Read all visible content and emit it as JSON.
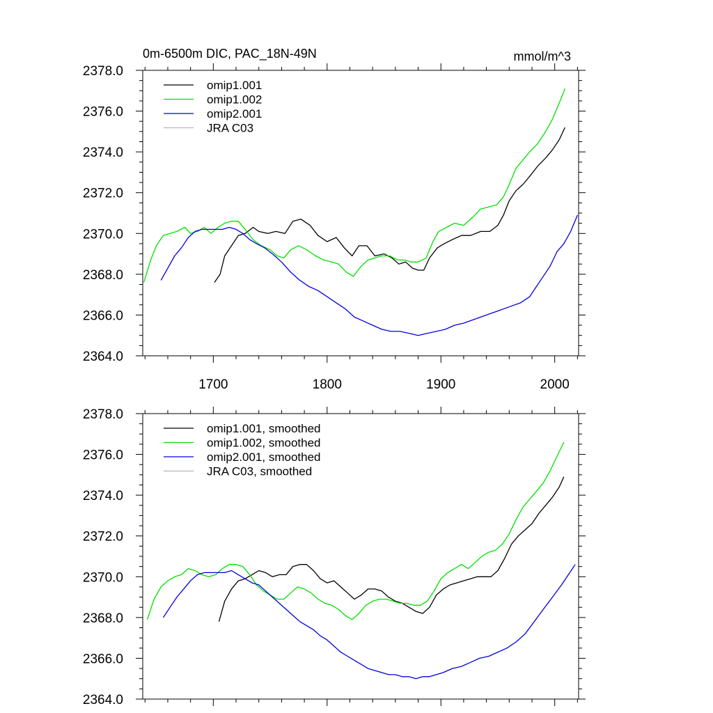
{
  "chart_data": [
    {
      "type": "line",
      "title": "0m-6500m DIC, PAC_18N-49N",
      "units": "mmol/m^3",
      "xlim": [
        1638,
        2021
      ],
      "ylim": [
        2364.0,
        2378.0
      ],
      "xticks": [
        1700,
        1800,
        1900,
        2000
      ],
      "xtick_labels": [
        "1700",
        "1800",
        "1900",
        "2000"
      ],
      "yticks": [
        2364.0,
        2366.0,
        2368.0,
        2370.0,
        2372.0,
        2374.0,
        2376.0,
        2378.0
      ],
      "ytick_labels": [
        "2364.0",
        "2366.0",
        "2368.0",
        "2370.0",
        "2372.0",
        "2374.0",
        "2376.0",
        "2378.0"
      ],
      "legend": {
        "placement": "top-left"
      },
      "series": [
        {
          "name": "omip1.001",
          "color": "#000000",
          "x": [
            1701,
            1706,
            1710,
            1716,
            1722,
            1728,
            1735,
            1740,
            1748,
            1755,
            1763,
            1770,
            1777,
            1785,
            1792,
            1800,
            1808,
            1815,
            1822,
            1828,
            1835,
            1842,
            1850,
            1857,
            1863,
            1869,
            1875,
            1880,
            1885,
            1890,
            1897,
            1903,
            1910,
            1918,
            1926,
            1935,
            1943,
            1950,
            1955,
            1960,
            1966,
            1972,
            1978,
            1985,
            1992,
            1998,
            2004,
            2009
          ],
          "values": [
            2367.6,
            2368.0,
            2368.9,
            2369.4,
            2369.9,
            2370.0,
            2370.3,
            2370.1,
            2370.0,
            2370.1,
            2370.0,
            2370.6,
            2370.7,
            2370.4,
            2369.9,
            2369.6,
            2369.8,
            2369.3,
            2368.9,
            2369.4,
            2369.4,
            2368.9,
            2369.0,
            2368.8,
            2368.5,
            2368.6,
            2368.3,
            2368.2,
            2368.2,
            2368.8,
            2369.3,
            2369.5,
            2369.7,
            2369.9,
            2369.9,
            2370.1,
            2370.1,
            2370.4,
            2370.9,
            2371.6,
            2372.1,
            2372.4,
            2372.8,
            2373.3,
            2373.7,
            2374.1,
            2374.6,
            2375.2
          ]
        },
        {
          "name": "omip1.002",
          "color": "#00e000",
          "x": [
            1639,
            1645,
            1650,
            1656,
            1662,
            1668,
            1675,
            1680,
            1686,
            1692,
            1698,
            1704,
            1710,
            1716,
            1722,
            1728,
            1735,
            1742,
            1750,
            1756,
            1762,
            1768,
            1775,
            1782,
            1790,
            1797,
            1804,
            1810,
            1817,
            1823,
            1830,
            1836,
            1842,
            1848,
            1855,
            1862,
            1868,
            1874,
            1880,
            1887,
            1893,
            1898,
            1905,
            1912,
            1920,
            1928,
            1935,
            1942,
            1949,
            1955,
            1960,
            1966,
            1972,
            1978,
            1985,
            1992,
            1998,
            2004,
            2009
          ],
          "values": [
            2367.6,
            2368.7,
            2369.4,
            2369.9,
            2370.0,
            2370.1,
            2370.3,
            2370.0,
            2370.1,
            2370.3,
            2370.0,
            2370.3,
            2370.5,
            2370.6,
            2370.6,
            2370.2,
            2369.7,
            2369.4,
            2369.2,
            2368.9,
            2368.8,
            2369.2,
            2369.4,
            2369.2,
            2368.9,
            2368.7,
            2368.6,
            2368.5,
            2368.1,
            2367.9,
            2368.4,
            2368.7,
            2368.8,
            2368.9,
            2368.9,
            2368.7,
            2368.7,
            2368.6,
            2368.6,
            2368.8,
            2369.6,
            2370.1,
            2370.3,
            2370.5,
            2370.4,
            2370.8,
            2371.2,
            2371.3,
            2371.4,
            2371.8,
            2372.4,
            2373.2,
            2373.6,
            2374.0,
            2374.4,
            2375.0,
            2375.6,
            2376.4,
            2377.1
          ]
        },
        {
          "name": "omip2.001",
          "color": "#0000e0",
          "x": [
            1654,
            1660,
            1666,
            1672,
            1678,
            1684,
            1690,
            1696,
            1702,
            1708,
            1714,
            1720,
            1726,
            1732,
            1738,
            1745,
            1752,
            1760,
            1768,
            1776,
            1784,
            1792,
            1800,
            1808,
            1816,
            1824,
            1832,
            1840,
            1848,
            1856,
            1864,
            1872,
            1880,
            1888,
            1896,
            1904,
            1912,
            1920,
            1930,
            1940,
            1950,
            1960,
            1970,
            1978,
            1984,
            1990,
            1996,
            2002,
            2008,
            2014,
            2020
          ],
          "values": [
            2367.7,
            2368.3,
            2368.9,
            2369.3,
            2369.8,
            2370.1,
            2370.2,
            2370.2,
            2370.2,
            2370.2,
            2370.3,
            2370.2,
            2370.0,
            2369.7,
            2369.5,
            2369.3,
            2369.0,
            2368.6,
            2368.1,
            2367.7,
            2367.4,
            2367.2,
            2366.9,
            2366.6,
            2366.3,
            2365.9,
            2365.7,
            2365.5,
            2365.3,
            2365.2,
            2365.2,
            2365.1,
            2365.0,
            2365.1,
            2365.2,
            2365.3,
            2365.5,
            2365.6,
            2365.8,
            2366.0,
            2366.2,
            2366.4,
            2366.6,
            2366.9,
            2367.4,
            2367.9,
            2368.4,
            2369.1,
            2369.5,
            2370.1,
            2370.9
          ]
        },
        {
          "name": "JRA C03",
          "color": "#b4b4b4",
          "x": [],
          "values": []
        }
      ]
    },
    {
      "type": "line",
      "title": "",
      "xlim": [
        1638,
        2021
      ],
      "ylim": [
        2364.0,
        2378.0
      ],
      "yticks": [
        2364.0,
        2366.0,
        2368.0,
        2370.0,
        2372.0,
        2374.0,
        2376.0,
        2378.0
      ],
      "ytick_labels": [
        "2364.0",
        "2366.0",
        "2368.0",
        "2370.0",
        "2372.0",
        "2374.0",
        "2376.0",
        "2378.0"
      ],
      "legend": {
        "placement": "top-left"
      },
      "series": [
        {
          "name": "omip1.001, smoothed",
          "color": "#000000",
          "x": [
            1705,
            1710,
            1716,
            1722,
            1728,
            1734,
            1740,
            1746,
            1752,
            1758,
            1764,
            1770,
            1776,
            1782,
            1788,
            1794,
            1800,
            1806,
            1812,
            1818,
            1824,
            1830,
            1836,
            1842,
            1848,
            1854,
            1860,
            1866,
            1872,
            1878,
            1884,
            1890,
            1896,
            1902,
            1908,
            1914,
            1920,
            1926,
            1932,
            1938,
            1944,
            1950,
            1956,
            1962,
            1968,
            1974,
            1980,
            1986,
            1992,
            1998,
            2004,
            2008
          ],
          "values": [
            2367.8,
            2368.8,
            2369.4,
            2369.8,
            2369.9,
            2370.1,
            2370.3,
            2370.2,
            2370.0,
            2370.1,
            2370.1,
            2370.5,
            2370.6,
            2370.6,
            2370.3,
            2369.9,
            2369.7,
            2369.8,
            2369.5,
            2369.2,
            2368.9,
            2369.1,
            2369.4,
            2369.4,
            2369.3,
            2369.0,
            2368.8,
            2368.7,
            2368.5,
            2368.3,
            2368.2,
            2368.5,
            2369.1,
            2369.4,
            2369.6,
            2369.7,
            2369.8,
            2369.9,
            2370.0,
            2370.0,
            2370.0,
            2370.3,
            2370.9,
            2371.6,
            2372.0,
            2372.3,
            2372.6,
            2373.1,
            2373.5,
            2373.9,
            2374.4,
            2374.9
          ]
        },
        {
          "name": "omip1.002, smoothed",
          "color": "#00e000",
          "x": [
            1642,
            1648,
            1654,
            1660,
            1666,
            1672,
            1678,
            1684,
            1690,
            1696,
            1702,
            1708,
            1714,
            1720,
            1726,
            1732,
            1738,
            1744,
            1750,
            1756,
            1762,
            1768,
            1774,
            1780,
            1786,
            1792,
            1798,
            1804,
            1810,
            1816,
            1822,
            1828,
            1834,
            1840,
            1846,
            1852,
            1858,
            1864,
            1870,
            1876,
            1882,
            1888,
            1894,
            1900,
            1906,
            1912,
            1918,
            1924,
            1930,
            1936,
            1942,
            1948,
            1954,
            1960,
            1966,
            1972,
            1978,
            1984,
            1990,
            1996,
            2002,
            2008
          ],
          "values": [
            2367.9,
            2368.9,
            2369.5,
            2369.8,
            2370.0,
            2370.1,
            2370.4,
            2370.3,
            2370.1,
            2370.0,
            2370.1,
            2370.4,
            2370.6,
            2370.6,
            2370.5,
            2370.1,
            2369.6,
            2369.3,
            2369.1,
            2368.9,
            2368.9,
            2369.2,
            2369.5,
            2369.4,
            2369.2,
            2368.9,
            2368.7,
            2368.6,
            2368.4,
            2368.1,
            2367.9,
            2368.2,
            2368.6,
            2368.8,
            2368.9,
            2368.9,
            2368.8,
            2368.7,
            2368.7,
            2368.6,
            2368.6,
            2368.8,
            2369.3,
            2369.9,
            2370.2,
            2370.4,
            2370.6,
            2370.4,
            2370.7,
            2371.0,
            2371.2,
            2371.3,
            2371.6,
            2372.1,
            2372.8,
            2373.4,
            2373.8,
            2374.2,
            2374.6,
            2375.2,
            2375.9,
            2376.6
          ]
        },
        {
          "name": "omip2.001, smoothed",
          "color": "#0000e0",
          "x": [
            1656,
            1662,
            1668,
            1674,
            1680,
            1686,
            1692,
            1698,
            1704,
            1710,
            1716,
            1722,
            1728,
            1734,
            1740,
            1746,
            1752,
            1758,
            1764,
            1770,
            1776,
            1782,
            1788,
            1794,
            1800,
            1806,
            1812,
            1818,
            1824,
            1830,
            1836,
            1842,
            1848,
            1854,
            1860,
            1866,
            1872,
            1878,
            1884,
            1890,
            1896,
            1902,
            1910,
            1918,
            1926,
            1934,
            1942,
            1950,
            1958,
            1966,
            1974,
            1982,
            1990,
            1998,
            2006,
            2012,
            2018
          ],
          "values": [
            2368.0,
            2368.5,
            2369.0,
            2369.4,
            2369.8,
            2370.1,
            2370.2,
            2370.2,
            2370.2,
            2370.2,
            2370.3,
            2370.1,
            2369.9,
            2369.7,
            2369.6,
            2369.3,
            2369.0,
            2368.7,
            2368.4,
            2368.1,
            2367.8,
            2367.6,
            2367.4,
            2367.1,
            2366.9,
            2366.6,
            2366.3,
            2366.1,
            2365.9,
            2365.7,
            2365.5,
            2365.4,
            2365.3,
            2365.2,
            2365.2,
            2365.1,
            2365.1,
            2365.0,
            2365.1,
            2365.1,
            2365.2,
            2365.3,
            2365.5,
            2365.6,
            2365.8,
            2366.0,
            2366.1,
            2366.3,
            2366.5,
            2366.8,
            2367.2,
            2367.8,
            2368.4,
            2369.0,
            2369.6,
            2370.1,
            2370.6
          ]
        },
        {
          "name": "JRA C03, smoothed",
          "color": "#b4b4b4",
          "x": [],
          "values": []
        }
      ]
    }
  ]
}
